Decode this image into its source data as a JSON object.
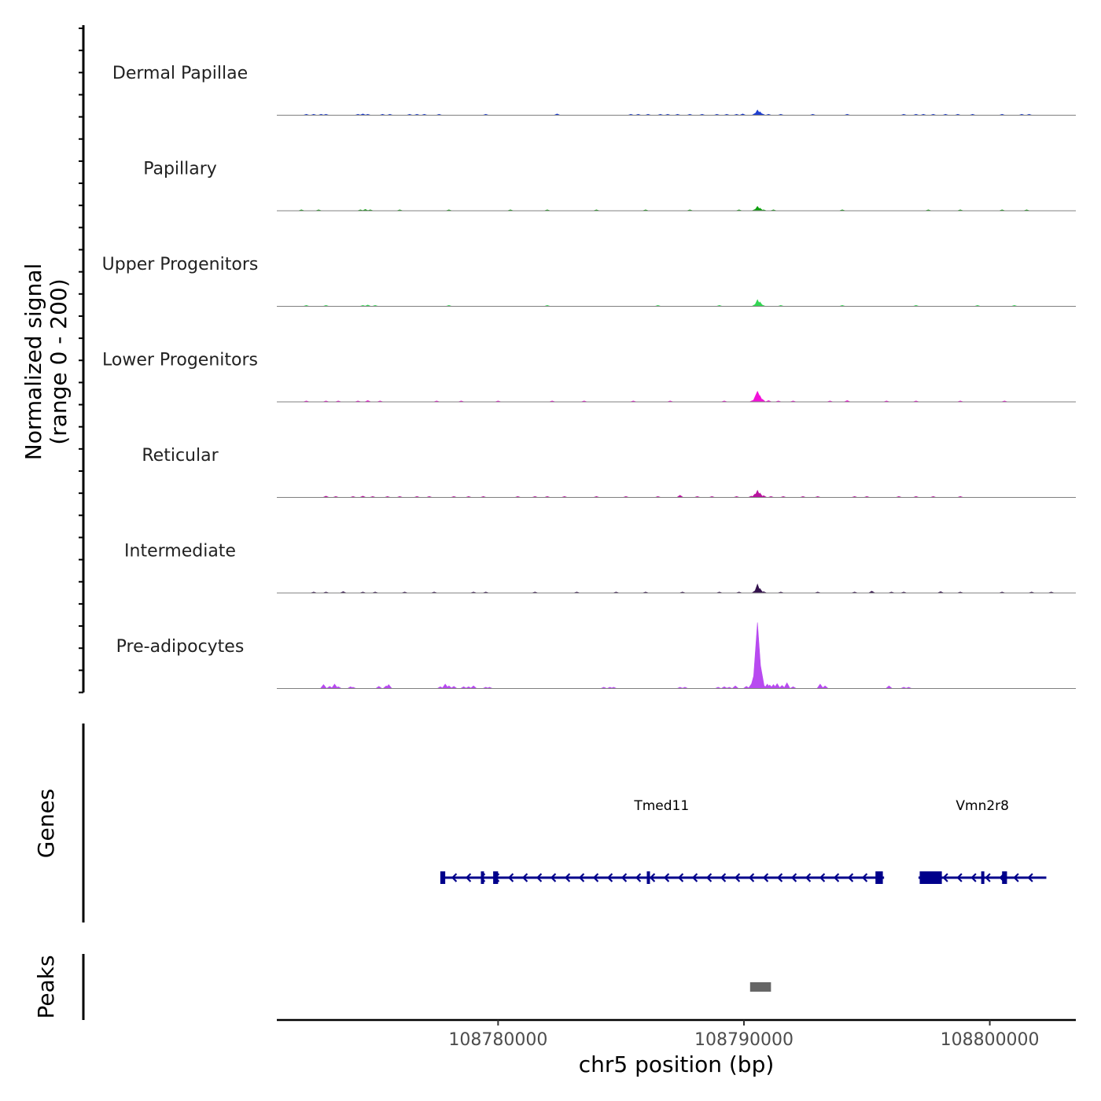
{
  "chart_data": {
    "type": "area",
    "chromosome": "chr5",
    "xlabel": "chr5 position (bp)",
    "xlim": [
      108771000,
      108803500
    ],
    "xticks": [
      108780000,
      108790000,
      108800000
    ],
    "xtick_labels": [
      "108780000",
      "108790000",
      "108800000"
    ],
    "signal_panel": {
      "ylabel_line1": "Normalized signal",
      "ylabel_line2": "(range 0 - 200)",
      "ylim": [
        0,
        200
      ]
    },
    "tracks": [
      {
        "name": "Dermal Papillae",
        "color": "#1f3fd0",
        "bins": [
          [
            108772200,
            2
          ],
          [
            108772500,
            1
          ],
          [
            108772800,
            1
          ],
          [
            108773000,
            1
          ],
          [
            108774300,
            1
          ],
          [
            108774500,
            3
          ],
          [
            108774700,
            2
          ],
          [
            108775300,
            1
          ],
          [
            108775600,
            1
          ],
          [
            108776400,
            2
          ],
          [
            108776700,
            1
          ],
          [
            108777000,
            1
          ],
          [
            108777600,
            1
          ],
          [
            108779500,
            1
          ],
          [
            108782400,
            3
          ],
          [
            108785400,
            2
          ],
          [
            108785700,
            1
          ],
          [
            108786100,
            1
          ],
          [
            108786600,
            2
          ],
          [
            108786900,
            2
          ],
          [
            108787300,
            1
          ],
          [
            108787800,
            1
          ],
          [
            108788300,
            1
          ],
          [
            108788900,
            2
          ],
          [
            108789300,
            1
          ],
          [
            108789700,
            2
          ],
          [
            108789950,
            3
          ],
          [
            108790450,
            4
          ],
          [
            108790550,
            12
          ],
          [
            108790650,
            8
          ],
          [
            108790750,
            3
          ],
          [
            108791000,
            2
          ],
          [
            108791500,
            1
          ],
          [
            108792800,
            1
          ],
          [
            108794200,
            2
          ],
          [
            108796500,
            2
          ],
          [
            108797000,
            2
          ],
          [
            108797300,
            1
          ],
          [
            108797700,
            2
          ],
          [
            108798200,
            1
          ],
          [
            108798700,
            2
          ],
          [
            108799300,
            1
          ],
          [
            108800500,
            2
          ],
          [
            108801300,
            1
          ],
          [
            108801600,
            2
          ]
        ],
        "labels_visible": true
      },
      {
        "name": "Papillary",
        "color": "#0ea00e",
        "bins": [
          [
            108772000,
            1
          ],
          [
            108772700,
            1
          ],
          [
            108774400,
            2
          ],
          [
            108774600,
            3
          ],
          [
            108774800,
            2
          ],
          [
            108776000,
            1
          ],
          [
            108778000,
            1
          ],
          [
            108780500,
            1
          ],
          [
            108782000,
            1
          ],
          [
            108784000,
            1
          ],
          [
            108786000,
            1
          ],
          [
            108787800,
            1
          ],
          [
            108789800,
            1
          ],
          [
            108790450,
            3
          ],
          [
            108790550,
            10
          ],
          [
            108790650,
            6
          ],
          [
            108790800,
            2
          ],
          [
            108791200,
            1
          ],
          [
            108794000,
            2
          ],
          [
            108797500,
            1
          ],
          [
            108798800,
            2
          ],
          [
            108800500,
            1
          ],
          [
            108801500,
            1
          ]
        ],
        "labels_visible": true
      },
      {
        "name": "Upper Progenitors",
        "color": "#33d653",
        "bins": [
          [
            108772200,
            1
          ],
          [
            108773000,
            1
          ],
          [
            108774500,
            2
          ],
          [
            108774700,
            3
          ],
          [
            108775000,
            1
          ],
          [
            108778000,
            1
          ],
          [
            108782000,
            1
          ],
          [
            108786500,
            1
          ],
          [
            108789000,
            1
          ],
          [
            108790450,
            4
          ],
          [
            108790550,
            15
          ],
          [
            108790650,
            10
          ],
          [
            108790750,
            3
          ],
          [
            108791500,
            1
          ],
          [
            108794000,
            1
          ],
          [
            108797000,
            1
          ],
          [
            108799500,
            1
          ],
          [
            108801000,
            1
          ]
        ],
        "labels_visible": true
      },
      {
        "name": "Lower Progenitors",
        "color": "#f211d8",
        "bins": [
          [
            108772200,
            1
          ],
          [
            108773000,
            2
          ],
          [
            108773500,
            2
          ],
          [
            108774300,
            2
          ],
          [
            108774700,
            3
          ],
          [
            108775200,
            1
          ],
          [
            108777500,
            1
          ],
          [
            108778500,
            1
          ],
          [
            108780000,
            1
          ],
          [
            108782200,
            1
          ],
          [
            108783500,
            1
          ],
          [
            108785500,
            1
          ],
          [
            108787000,
            1
          ],
          [
            108789200,
            1
          ],
          [
            108790350,
            3
          ],
          [
            108790450,
            8
          ],
          [
            108790550,
            24
          ],
          [
            108790650,
            14
          ],
          [
            108790750,
            6
          ],
          [
            108791000,
            3
          ],
          [
            108791400,
            2
          ],
          [
            108792000,
            1
          ],
          [
            108793500,
            2
          ],
          [
            108794200,
            3
          ],
          [
            108795800,
            1
          ],
          [
            108797000,
            1
          ],
          [
            108798800,
            1
          ],
          [
            108800600,
            1
          ]
        ],
        "labels_visible": true
      },
      {
        "name": "Reticular",
        "color": "#b8149e",
        "bins": [
          [
            108773000,
            3
          ],
          [
            108773400,
            1
          ],
          [
            108774100,
            2
          ],
          [
            108774500,
            3
          ],
          [
            108774900,
            2
          ],
          [
            108775500,
            1
          ],
          [
            108776000,
            1
          ],
          [
            108776700,
            1
          ],
          [
            108777200,
            2
          ],
          [
            108778200,
            2
          ],
          [
            108778800,
            1
          ],
          [
            108779400,
            2
          ],
          [
            108780800,
            1
          ],
          [
            108781500,
            1
          ],
          [
            108782000,
            1
          ],
          [
            108782700,
            1
          ],
          [
            108784000,
            1
          ],
          [
            108785200,
            2
          ],
          [
            108786500,
            1
          ],
          [
            108787400,
            5
          ],
          [
            108788100,
            1
          ],
          [
            108788700,
            1
          ],
          [
            108789700,
            2
          ],
          [
            108790300,
            3
          ],
          [
            108790450,
            8
          ],
          [
            108790550,
            16
          ],
          [
            108790650,
            10
          ],
          [
            108790800,
            4
          ],
          [
            108791100,
            2
          ],
          [
            108791600,
            2
          ],
          [
            108792400,
            1
          ],
          [
            108793000,
            1
          ],
          [
            108794500,
            1
          ],
          [
            108795000,
            1
          ],
          [
            108796300,
            1
          ],
          [
            108797000,
            2
          ],
          [
            108797700,
            1
          ],
          [
            108798800,
            1
          ]
        ],
        "labels_visible": true
      },
      {
        "name": "Intermediate",
        "color": "#33104d",
        "bins": [
          [
            108772500,
            1
          ],
          [
            108773000,
            2
          ],
          [
            108773700,
            3
          ],
          [
            108774500,
            1
          ],
          [
            108775000,
            2
          ],
          [
            108776200,
            1
          ],
          [
            108777400,
            1
          ],
          [
            108779000,
            2
          ],
          [
            108779500,
            1
          ],
          [
            108781500,
            1
          ],
          [
            108783200,
            1
          ],
          [
            108784800,
            2
          ],
          [
            108786000,
            1
          ],
          [
            108787500,
            1
          ],
          [
            108789000,
            1
          ],
          [
            108789800,
            2
          ],
          [
            108790450,
            5
          ],
          [
            108790550,
            20
          ],
          [
            108790650,
            10
          ],
          [
            108790800,
            3
          ],
          [
            108791500,
            1
          ],
          [
            108793000,
            1
          ],
          [
            108794500,
            2
          ],
          [
            108795200,
            4
          ],
          [
            108796000,
            2
          ],
          [
            108796500,
            1
          ],
          [
            108798000,
            3
          ],
          [
            108798800,
            1
          ],
          [
            108800500,
            1
          ],
          [
            108801700,
            2
          ],
          [
            108802500,
            1
          ]
        ],
        "labels_visible": true
      },
      {
        "name": "Pre-adipocytes",
        "color": "#b84af0",
        "bins": [
          [
            108772900,
            9
          ],
          [
            108773150,
            5
          ],
          [
            108773350,
            10
          ],
          [
            108773500,
            4
          ],
          [
            108774000,
            4
          ],
          [
            108774100,
            3
          ],
          [
            108775150,
            5
          ],
          [
            108775450,
            6
          ],
          [
            108775550,
            9
          ],
          [
            108777650,
            4
          ],
          [
            108777850,
            10
          ],
          [
            108778000,
            6
          ],
          [
            108778200,
            5
          ],
          [
            108778600,
            4
          ],
          [
            108778800,
            4
          ],
          [
            108779000,
            6
          ],
          [
            108779500,
            3
          ],
          [
            108779650,
            3
          ],
          [
            108784300,
            3
          ],
          [
            108784550,
            3
          ],
          [
            108784700,
            3
          ],
          [
            108787400,
            3
          ],
          [
            108787600,
            3
          ],
          [
            108788950,
            3
          ],
          [
            108789200,
            4
          ],
          [
            108789400,
            3
          ],
          [
            108789650,
            6
          ],
          [
            108790100,
            5
          ],
          [
            108790300,
            10
          ],
          [
            108790450,
            40
          ],
          [
            108790550,
            150
          ],
          [
            108790650,
            60
          ],
          [
            108790800,
            8
          ],
          [
            108790950,
            10
          ],
          [
            108791050,
            8
          ],
          [
            108791200,
            9
          ],
          [
            108791350,
            11
          ],
          [
            108791550,
            7
          ],
          [
            108791750,
            13
          ],
          [
            108792000,
            4
          ],
          [
            108793100,
            10
          ],
          [
            108793300,
            6
          ],
          [
            108795900,
            6
          ],
          [
            108796500,
            3
          ],
          [
            108796700,
            3
          ]
        ],
        "labels_visible": true
      }
    ],
    "genes": [
      {
        "name": "Tmed11",
        "start": 108777700,
        "end": 108795700,
        "strand": "-",
        "exons": [
          [
            108777650,
            108777850
          ],
          [
            108779300,
            108779400
          ],
          [
            108779800,
            108780000
          ],
          [
            108786050,
            108786100
          ],
          [
            108795350,
            108795650
          ]
        ],
        "label_pos": 108786650
      },
      {
        "name": "Vmn2r8",
        "start": 108797100,
        "end": 108802300,
        "strand": "-",
        "exons": [
          [
            108797150,
            108798050
          ],
          [
            108799650,
            108799750
          ],
          [
            108800500,
            108800700
          ]
        ],
        "label_pos": 108799700
      }
    ],
    "gene_panel_label": "Genes",
    "peaks": [
      {
        "start": 108790250,
        "end": 108791100
      }
    ],
    "peak_panel_label": "Peaks",
    "colors": {
      "gene": "#00008b",
      "peak": "#666666",
      "baseline": "#808080"
    }
  }
}
